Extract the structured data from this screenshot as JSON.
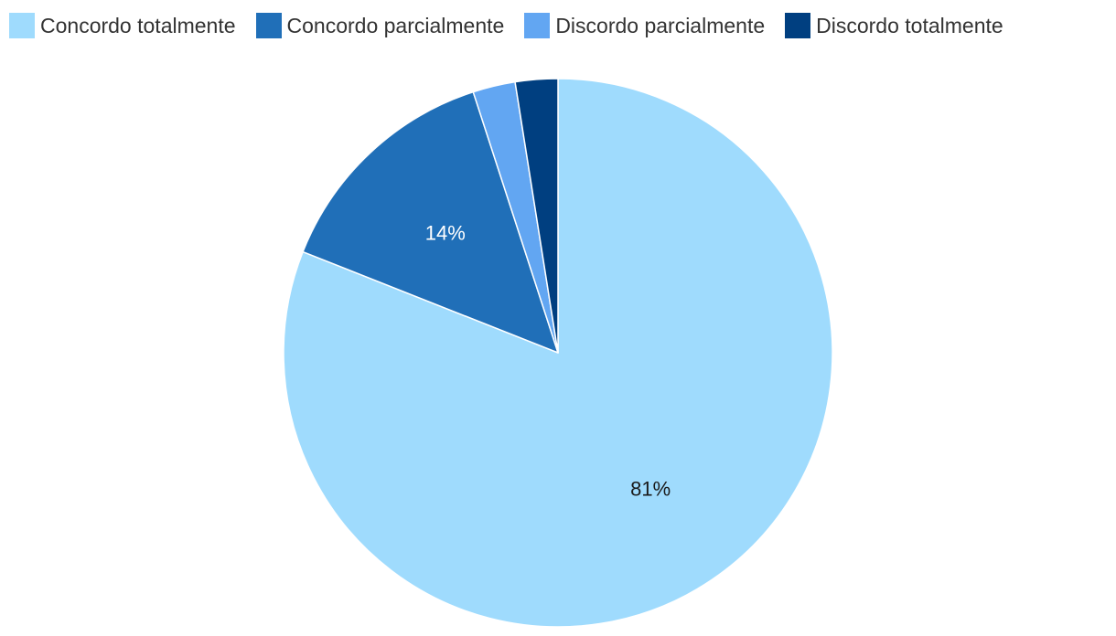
{
  "chart_data": {
    "type": "pie",
    "categories": [
      "Concordo totalmente",
      "Concordo parcialmente",
      "Discordo parcialmente",
      "Discordo totalmente"
    ],
    "values": [
      81,
      14,
      2.5,
      2.5
    ],
    "colors": [
      "#9fdbfd",
      "#206fb8",
      "#62a6f2",
      "#003f80"
    ],
    "data_labels": [
      "81%",
      "14%",
      "",
      ""
    ],
    "data_label_colors": [
      "#1a1a1a",
      "#ffffff",
      "#ffffff",
      "#ffffff"
    ],
    "start_angle_deg": 0,
    "direction": "clockwise",
    "legend_position": "top-left"
  }
}
